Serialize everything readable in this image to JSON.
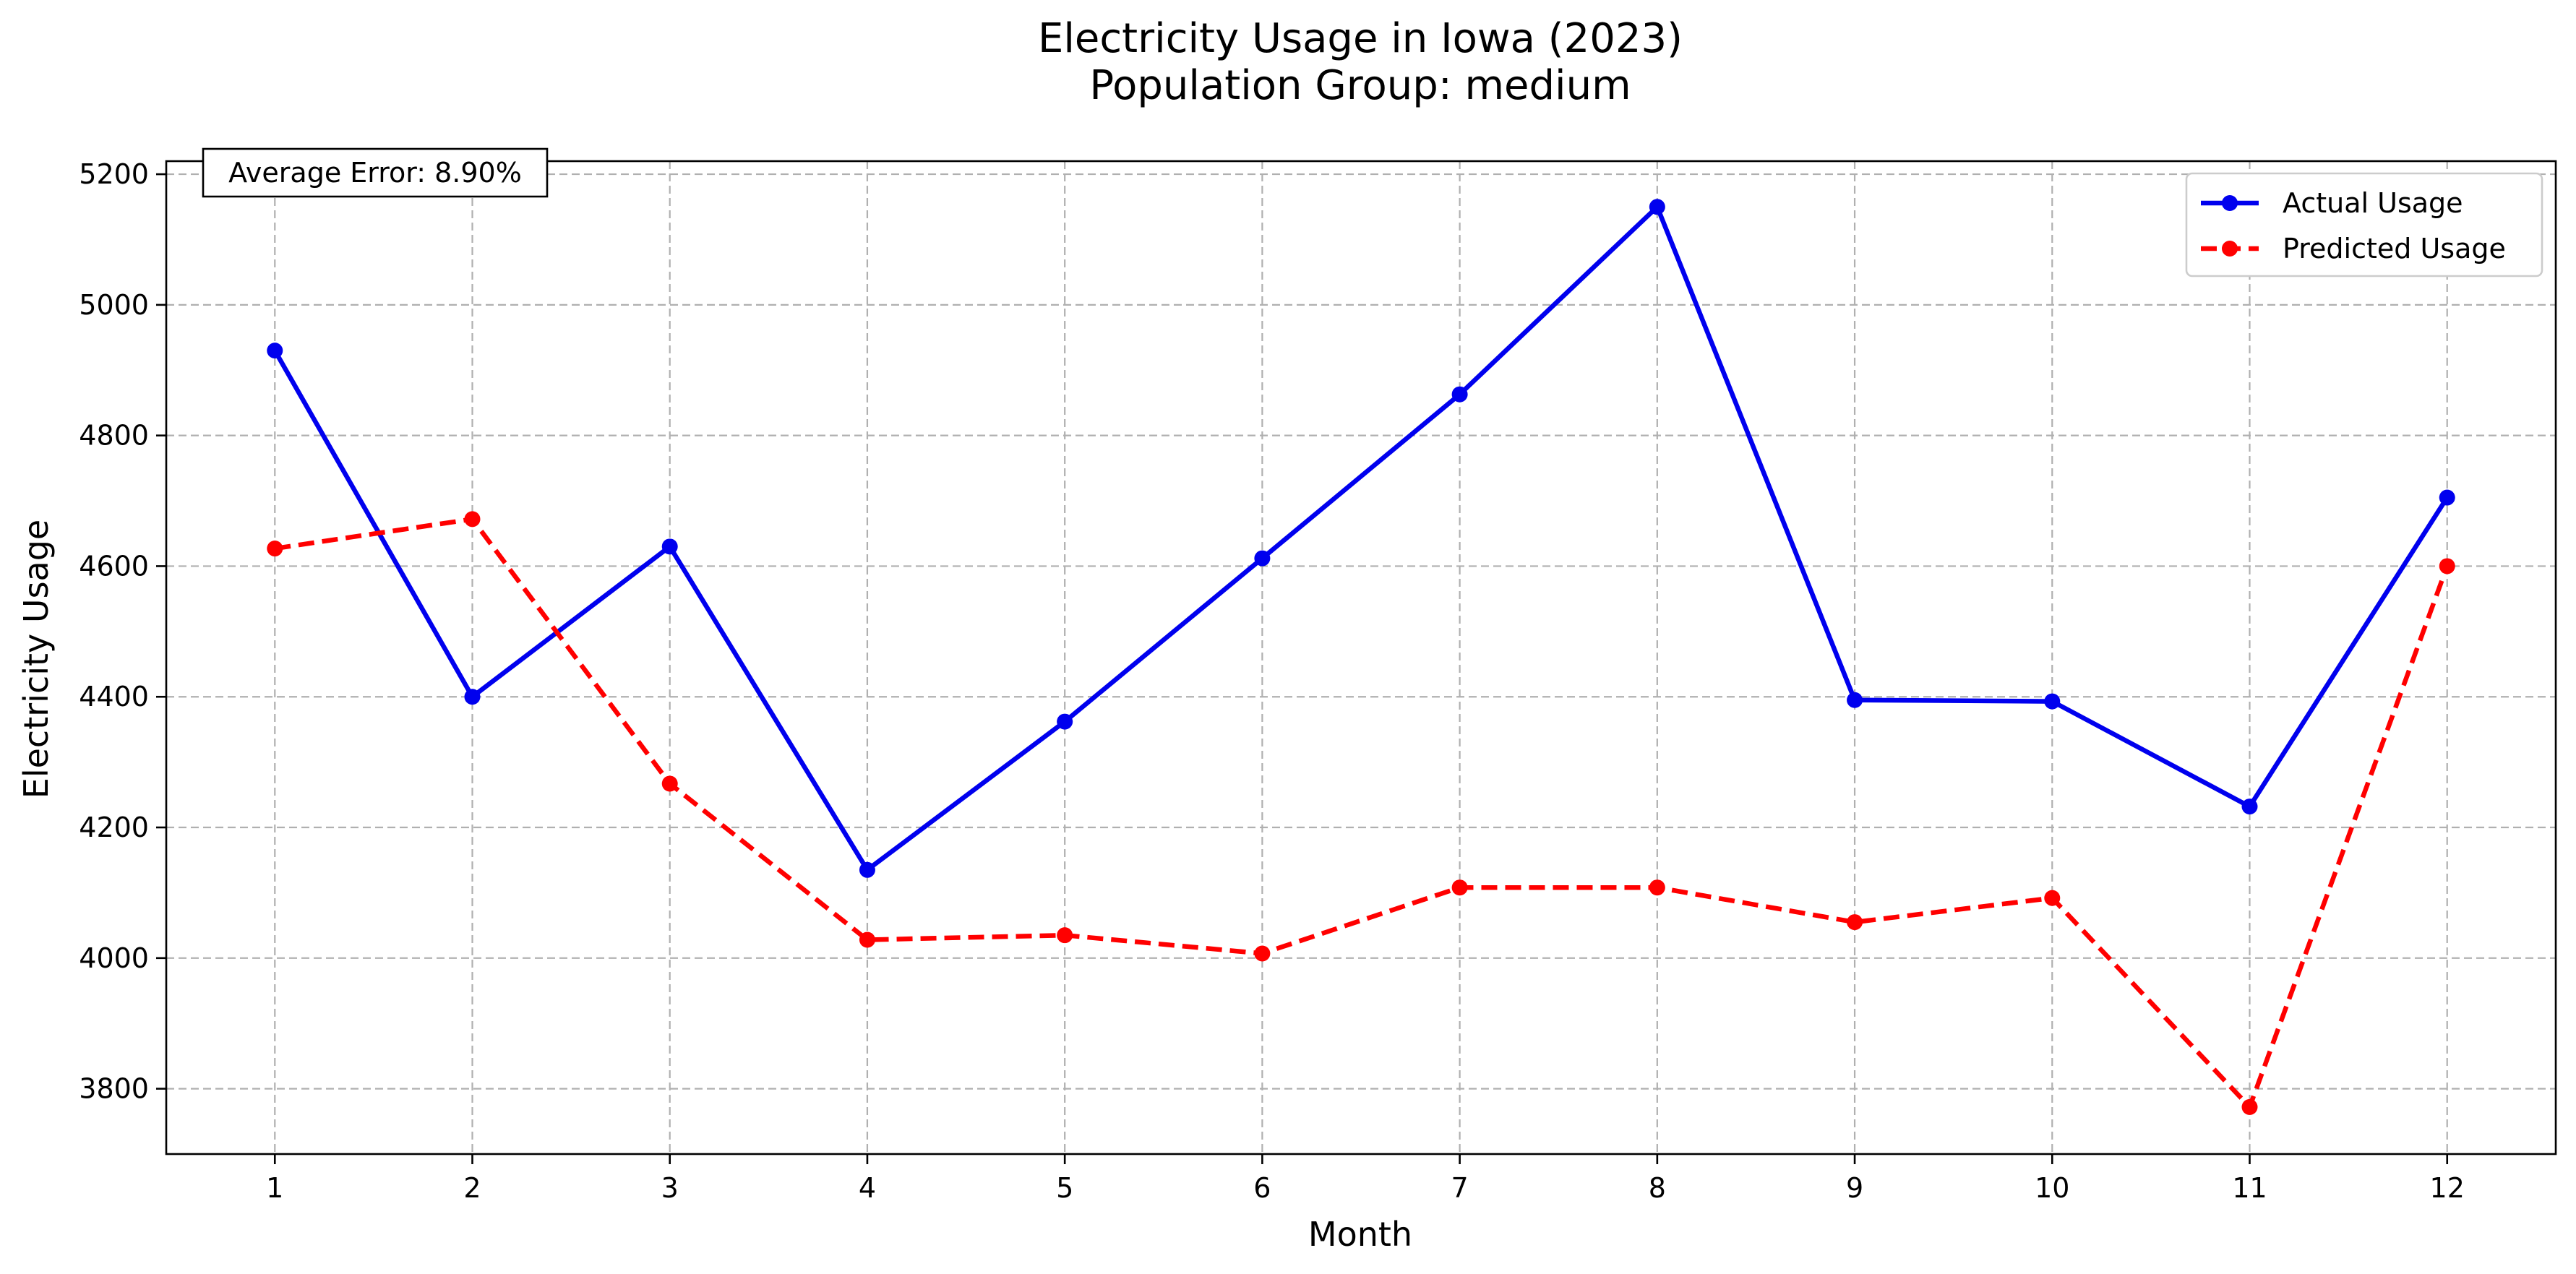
{
  "chart_data": {
    "type": "line",
    "title": "Electricity Usage in Iowa (2023)",
    "subtitle": "Population Group: medium",
    "xlabel": "Month",
    "ylabel": "Electricity Usage",
    "x": [
      1,
      2,
      3,
      4,
      5,
      6,
      7,
      8,
      9,
      10,
      11,
      12
    ],
    "xlim": [
      0.45,
      12.55
    ],
    "ylim": [
      3700,
      5220
    ],
    "yticks": [
      3800,
      4000,
      4200,
      4400,
      4600,
      4800,
      5000,
      5200
    ],
    "grid": true,
    "legend_position": "top-right",
    "annotation": "Average Error: 8.90%",
    "series": [
      {
        "name": "Actual Usage",
        "color": "#0000ee",
        "line_style": "solid",
        "marker": "circle",
        "values": [
          4930,
          4400,
          4630,
          4135,
          4362,
          4612,
          4863,
          5150,
          4395,
          4393,
          4232,
          4705
        ]
      },
      {
        "name": "Predicted Usage",
        "color": "#ff0000",
        "line_style": "dashed",
        "marker": "circle",
        "values": [
          4627,
          4672,
          4267,
          4028,
          4035,
          4007,
          4108,
          4108,
          4055,
          4092,
          3772,
          4600
        ]
      }
    ]
  }
}
